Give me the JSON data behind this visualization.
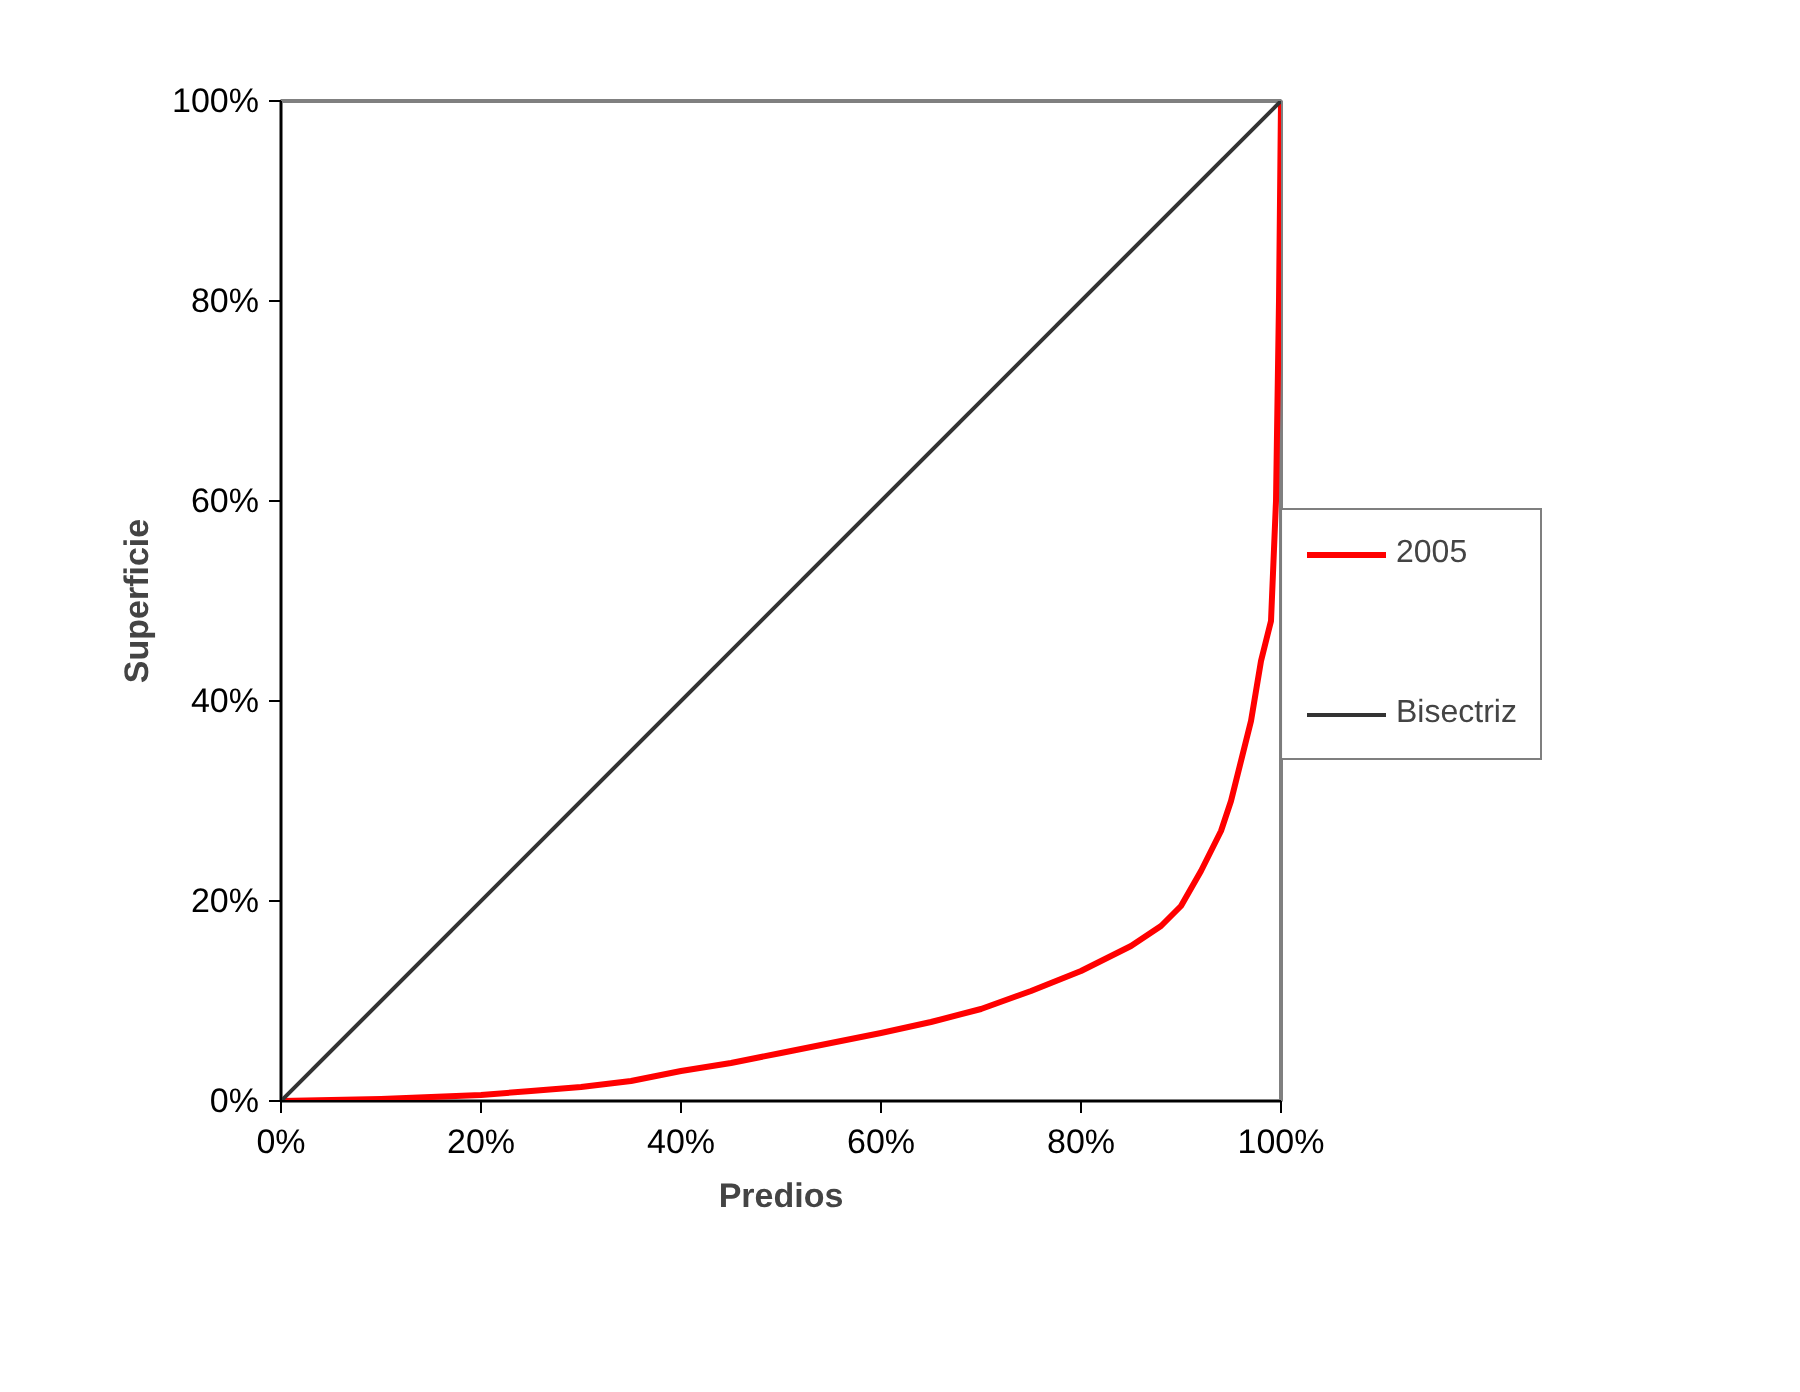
{
  "chart_data": {
    "type": "line",
    "xlabel": "Predios",
    "ylabel": "Superficie",
    "xlim": [
      0,
      100
    ],
    "ylim": [
      0,
      100
    ],
    "xticks": [
      {
        "value": 0,
        "label": "0%"
      },
      {
        "value": 20,
        "label": "20%"
      },
      {
        "value": 40,
        "label": "40%"
      },
      {
        "value": 60,
        "label": "60%"
      },
      {
        "value": 80,
        "label": "80%"
      },
      {
        "value": 100,
        "label": "100%"
      }
    ],
    "yticks": [
      {
        "value": 0,
        "label": "0%"
      },
      {
        "value": 20,
        "label": "20%"
      },
      {
        "value": 40,
        "label": "40%"
      },
      {
        "value": 60,
        "label": "60%"
      },
      {
        "value": 80,
        "label": "80%"
      },
      {
        "value": 100,
        "label": "100%"
      }
    ],
    "grid": false,
    "legend": "right",
    "marker": "none",
    "line_style": "solid",
    "series": [
      {
        "name": "2005",
        "color": "#ff0000",
        "x": [
          0,
          5,
          10,
          15,
          20,
          25,
          30,
          35,
          40,
          45,
          50,
          55,
          60,
          65,
          70,
          75,
          80,
          85,
          88,
          90,
          92,
          94,
          95,
          96,
          97,
          98,
          99,
          99.5,
          99.8,
          100
        ],
        "values": [
          0,
          0.1,
          0.2,
          0.4,
          0.6,
          1,
          1.4,
          2,
          3,
          3.8,
          4.8,
          5.8,
          6.8,
          7.9,
          9.2,
          11,
          13,
          15.5,
          17.5,
          19.5,
          23,
          27,
          30,
          34,
          38,
          44,
          48,
          60,
          80,
          100
        ]
      },
      {
        "name": "Bisectriz",
        "color": "#333333",
        "x": [
          0,
          100
        ],
        "values": [
          0,
          100
        ]
      }
    ]
  }
}
